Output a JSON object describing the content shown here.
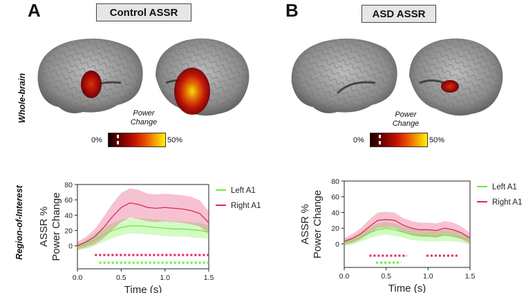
{
  "panels": [
    {
      "letter": "A",
      "title": "Control ASSR"
    },
    {
      "letter": "B",
      "title": "ASD ASSR"
    }
  ],
  "row_labels": {
    "top": "Whole-brain",
    "bottom": "Region-of-Interest"
  },
  "colorbar": {
    "title_line1": "Power",
    "title_line2": "Change",
    "min_label": "0%",
    "max_label": "50%"
  },
  "colors": {
    "left_a1": "#66ee33",
    "right_a1": "#e0245e",
    "heat_hot": "#ffee00",
    "heat_mid": "#cc1100",
    "heat_low": "#220000"
  },
  "chart_data": [
    {
      "type": "line",
      "panel": "A",
      "ylabel_line1": "ASSR %",
      "ylabel_line2": "Power Change",
      "xlabel": "Time (s)",
      "xlim": [
        0,
        1.5
      ],
      "ylim": [
        -30,
        80
      ],
      "yticks": [
        0,
        20,
        40,
        60,
        80
      ],
      "xticks": [
        0.0,
        0.5,
        1.0,
        1.5
      ],
      "x": [
        0.0,
        0.1,
        0.2,
        0.3,
        0.4,
        0.5,
        0.6,
        0.7,
        0.8,
        0.9,
        1.0,
        1.1,
        1.2,
        1.3,
        1.4,
        1.5
      ],
      "series": [
        {
          "name": "Left A1",
          "color": "#66ee33",
          "values": [
            -2,
            2,
            8,
            14,
            20,
            24,
            26,
            26,
            25,
            24,
            23,
            22,
            22,
            21,
            20,
            18
          ],
          "ci": [
            4,
            6,
            8,
            9,
            10,
            10,
            10,
            10,
            10,
            10,
            10,
            10,
            10,
            10,
            10,
            9
          ],
          "significance": [
            [
              0.25,
              1.5
            ]
          ],
          "sig_y": -22
        },
        {
          "name": "Right A1",
          "color": "#e0245e",
          "values": [
            0,
            5,
            12,
            24,
            38,
            50,
            56,
            54,
            50,
            49,
            50,
            49,
            48,
            46,
            42,
            30
          ],
          "ci": [
            5,
            7,
            10,
            14,
            17,
            19,
            19,
            19,
            18,
            18,
            18,
            18,
            18,
            18,
            17,
            15
          ],
          "significance": [
            [
              0.2,
              1.5
            ]
          ],
          "sig_y": -12
        }
      ]
    },
    {
      "type": "line",
      "panel": "B",
      "ylabel_line1": "ASSR %",
      "ylabel_line2": "Power Change",
      "xlabel": "Time (s)",
      "xlim": [
        0,
        1.5
      ],
      "ylim": [
        -30,
        80
      ],
      "yticks": [
        0,
        20,
        40,
        60,
        80
      ],
      "xticks": [
        0.0,
        0.5,
        1.0,
        1.5
      ],
      "x": [
        0.0,
        0.1,
        0.2,
        0.3,
        0.4,
        0.5,
        0.6,
        0.7,
        0.8,
        0.9,
        1.0,
        1.1,
        1.2,
        1.3,
        1.4,
        1.5
      ],
      "series": [
        {
          "name": "Left A1",
          "color": "#66ee33",
          "values": [
            1,
            4,
            9,
            14,
            18,
            20,
            18,
            15,
            12,
            11,
            10,
            10,
            11,
            10,
            8,
            4
          ],
          "ci": [
            4,
            5,
            6,
            7,
            8,
            8,
            8,
            7,
            7,
            7,
            7,
            7,
            7,
            7,
            6,
            6
          ],
          "significance": [
            [
              0.38,
              0.68
            ]
          ],
          "sig_y": -24
        },
        {
          "name": "Right A1",
          "color": "#e0245e",
          "values": [
            3,
            7,
            13,
            22,
            30,
            31,
            30,
            24,
            20,
            18,
            18,
            17,
            20,
            18,
            14,
            7
          ],
          "ci": [
            4,
            6,
            7,
            9,
            10,
            10,
            10,
            9,
            9,
            9,
            9,
            9,
            9,
            9,
            8,
            7
          ],
          "significance": [
            [
              0.3,
              0.75
            ],
            [
              0.98,
              1.35
            ]
          ],
          "sig_y": -15
        }
      ]
    }
  ]
}
